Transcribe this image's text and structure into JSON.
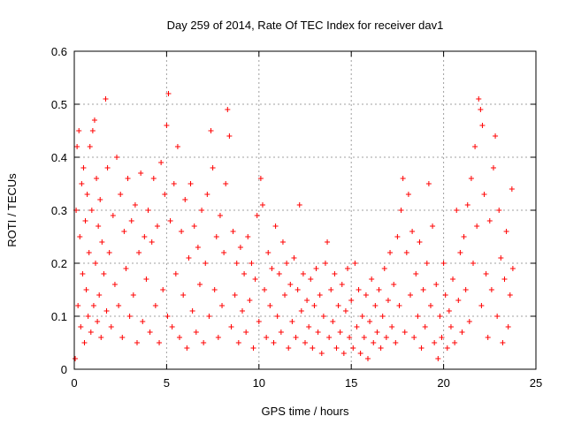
{
  "chart_data": {
    "type": "scatter",
    "title": "Day 259 of 2014, Rate Of TEC Index for receiver dav1",
    "xlabel": "GPS time / hours",
    "ylabel": "ROTI / TECUs",
    "xlim": [
      0,
      25
    ],
    "ylim": [
      0,
      0.6
    ],
    "x_ticks": [
      0,
      5,
      10,
      15,
      20,
      25
    ],
    "y_ticks": [
      0,
      0.1,
      0.2,
      0.3,
      0.4,
      0.5,
      0.6
    ],
    "x_tick_labels": [
      "0",
      "5",
      "10",
      "15",
      "20",
      "25"
    ],
    "y_tick_labels": [
      "0",
      "0.1",
      "0.2",
      "0.3",
      "0.4",
      "0.5",
      "0.6"
    ],
    "grid": true,
    "marker": "+",
    "color": "#ff0000",
    "series": [
      {
        "points": [
          [
            0.05,
            0.02
          ],
          [
            0.1,
            0.3
          ],
          [
            0.15,
            0.42
          ],
          [
            0.2,
            0.12
          ],
          [
            0.25,
            0.45
          ],
          [
            0.3,
            0.25
          ],
          [
            0.35,
            0.08
          ],
          [
            0.4,
            0.35
          ],
          [
            0.45,
            0.18
          ],
          [
            0.5,
            0.38
          ],
          [
            0.55,
            0.05
          ],
          [
            0.6,
            0.28
          ],
          [
            0.65,
            0.15
          ],
          [
            0.7,
            0.33
          ],
          [
            0.75,
            0.1
          ],
          [
            0.8,
            0.22
          ],
          [
            0.85,
            0.42
          ],
          [
            0.9,
            0.07
          ],
          [
            0.95,
            0.3
          ],
          [
            1.0,
            0.45
          ],
          [
            1.05,
            0.12
          ],
          [
            1.1,
            0.47
          ],
          [
            1.15,
            0.2
          ],
          [
            1.2,
            0.36
          ],
          [
            1.25,
            0.09
          ],
          [
            1.3,
            0.27
          ],
          [
            1.35,
            0.14
          ],
          [
            1.4,
            0.32
          ],
          [
            1.45,
            0.06
          ],
          [
            1.5,
            0.24
          ],
          [
            1.6,
            0.18
          ],
          [
            1.7,
            0.51
          ],
          [
            1.75,
            0.11
          ],
          [
            1.8,
            0.38
          ],
          [
            1.9,
            0.22
          ],
          [
            2.0,
            0.08
          ],
          [
            2.1,
            0.29
          ],
          [
            2.2,
            0.16
          ],
          [
            2.3,
            0.4
          ],
          [
            2.4,
            0.12
          ],
          [
            2.5,
            0.33
          ],
          [
            2.6,
            0.06
          ],
          [
            2.7,
            0.26
          ],
          [
            2.8,
            0.19
          ],
          [
            2.9,
            0.36
          ],
          [
            3.0,
            0.1
          ],
          [
            3.1,
            0.28
          ],
          [
            3.2,
            0.14
          ],
          [
            3.3,
            0.31
          ],
          [
            3.4,
            0.05
          ],
          [
            3.5,
            0.22
          ],
          [
            3.6,
            0.37
          ],
          [
            3.7,
            0.09
          ],
          [
            3.8,
            0.25
          ],
          [
            3.9,
            0.17
          ],
          [
            4.0,
            0.3
          ],
          [
            4.1,
            0.07
          ],
          [
            4.2,
            0.24
          ],
          [
            4.3,
            0.36
          ],
          [
            4.4,
            0.12
          ],
          [
            4.5,
            0.27
          ],
          [
            4.6,
            0.05
          ],
          [
            4.7,
            0.39
          ],
          [
            4.8,
            0.15
          ],
          [
            4.9,
            0.33
          ],
          [
            5.0,
            0.46
          ],
          [
            5.05,
            0.1
          ],
          [
            5.1,
            0.52
          ],
          [
            5.2,
            0.28
          ],
          [
            5.3,
            0.08
          ],
          [
            5.4,
            0.35
          ],
          [
            5.5,
            0.18
          ],
          [
            5.6,
            0.42
          ],
          [
            5.7,
            0.06
          ],
          [
            5.8,
            0.26
          ],
          [
            5.9,
            0.14
          ],
          [
            6.0,
            0.32
          ],
          [
            6.1,
            0.04
          ],
          [
            6.2,
            0.21
          ],
          [
            6.3,
            0.35
          ],
          [
            6.4,
            0.11
          ],
          [
            6.5,
            0.27
          ],
          [
            6.6,
            0.07
          ],
          [
            6.7,
            0.23
          ],
          [
            6.8,
            0.16
          ],
          [
            6.9,
            0.3
          ],
          [
            7.0,
            0.05
          ],
          [
            7.1,
            0.2
          ],
          [
            7.2,
            0.33
          ],
          [
            7.3,
            0.1
          ],
          [
            7.4,
            0.45
          ],
          [
            7.5,
            0.38
          ],
          [
            7.6,
            0.15
          ],
          [
            7.7,
            0.25
          ],
          [
            7.8,
            0.06
          ],
          [
            7.9,
            0.29
          ],
          [
            8.0,
            0.12
          ],
          [
            8.1,
            0.22
          ],
          [
            8.2,
            0.35
          ],
          [
            8.3,
            0.49
          ],
          [
            8.4,
            0.44
          ],
          [
            8.5,
            0.08
          ],
          [
            8.6,
            0.26
          ],
          [
            8.7,
            0.14
          ],
          [
            8.8,
            0.2
          ],
          [
            8.9,
            0.05
          ],
          [
            9.0,
            0.23
          ],
          [
            9.1,
            0.11
          ],
          [
            9.2,
            0.18
          ],
          [
            9.3,
            0.07
          ],
          [
            9.4,
            0.25
          ],
          [
            9.5,
            0.13
          ],
          [
            9.6,
            0.2
          ],
          [
            9.7,
            0.04
          ],
          [
            9.8,
            0.17
          ],
          [
            9.9,
            0.29
          ],
          [
            10.0,
            0.09
          ],
          [
            10.1,
            0.36
          ],
          [
            10.2,
            0.31
          ],
          [
            10.3,
            0.15
          ],
          [
            10.4,
            0.06
          ],
          [
            10.5,
            0.22
          ],
          [
            10.6,
            0.12
          ],
          [
            10.7,
            0.19
          ],
          [
            10.8,
            0.05
          ],
          [
            10.9,
            0.27
          ],
          [
            11.0,
            0.1
          ],
          [
            11.1,
            0.18
          ],
          [
            11.2,
            0.07
          ],
          [
            11.3,
            0.24
          ],
          [
            11.4,
            0.14
          ],
          [
            11.5,
            0.2
          ],
          [
            11.6,
            0.04
          ],
          [
            11.7,
            0.16
          ],
          [
            11.8,
            0.09
          ],
          [
            11.9,
            0.21
          ],
          [
            12.0,
            0.06
          ],
          [
            12.1,
            0.15
          ],
          [
            12.2,
            0.31
          ],
          [
            12.3,
            0.11
          ],
          [
            12.4,
            0.18
          ],
          [
            12.5,
            0.05
          ],
          [
            12.6,
            0.13
          ],
          [
            12.7,
            0.08
          ],
          [
            12.8,
            0.17
          ],
          [
            12.9,
            0.04
          ],
          [
            13.0,
            0.12
          ],
          [
            13.1,
            0.19
          ],
          [
            13.2,
            0.07
          ],
          [
            13.3,
            0.14
          ],
          [
            13.4,
            0.03
          ],
          [
            13.5,
            0.1
          ],
          [
            13.6,
            0.2
          ],
          [
            13.7,
            0.24
          ],
          [
            13.8,
            0.06
          ],
          [
            13.9,
            0.15
          ],
          [
            14.0,
            0.09
          ],
          [
            14.1,
            0.18
          ],
          [
            14.2,
            0.04
          ],
          [
            14.3,
            0.12
          ],
          [
            14.4,
            0.07
          ],
          [
            14.5,
            0.16
          ],
          [
            14.6,
            0.03
          ],
          [
            14.7,
            0.11
          ],
          [
            14.8,
            0.19
          ],
          [
            14.9,
            0.06
          ],
          [
            15.0,
            0.13
          ],
          [
            15.1,
            0.04
          ],
          [
            15.2,
            0.2
          ],
          [
            15.3,
            0.08
          ],
          [
            15.4,
            0.15
          ],
          [
            15.5,
            0.03
          ],
          [
            15.6,
            0.1
          ],
          [
            15.7,
            0.06
          ],
          [
            15.8,
            0.14
          ],
          [
            15.9,
            0.02
          ],
          [
            16.0,
            0.09
          ],
          [
            16.1,
            0.17
          ],
          [
            16.2,
            0.05
          ],
          [
            16.3,
            0.12
          ],
          [
            16.4,
            0.07
          ],
          [
            16.5,
            0.15
          ],
          [
            16.6,
            0.04
          ],
          [
            16.7,
            0.1
          ],
          [
            16.8,
            0.19
          ],
          [
            16.9,
            0.06
          ],
          [
            17.0,
            0.13
          ],
          [
            17.1,
            0.22
          ],
          [
            17.2,
            0.08
          ],
          [
            17.3,
            0.16
          ],
          [
            17.4,
            0.05
          ],
          [
            17.5,
            0.25
          ],
          [
            17.6,
            0.12
          ],
          [
            17.7,
            0.3
          ],
          [
            17.8,
            0.36
          ],
          [
            17.9,
            0.07
          ],
          [
            18.0,
            0.22
          ],
          [
            18.1,
            0.33
          ],
          [
            18.2,
            0.14
          ],
          [
            18.3,
            0.26
          ],
          [
            18.4,
            0.06
          ],
          [
            18.5,
            0.18
          ],
          [
            18.6,
            0.1
          ],
          [
            18.7,
            0.24
          ],
          [
            18.8,
            0.04
          ],
          [
            18.9,
            0.15
          ],
          [
            19.0,
            0.08
          ],
          [
            19.1,
            0.2
          ],
          [
            19.2,
            0.35
          ],
          [
            19.3,
            0.12
          ],
          [
            19.4,
            0.27
          ],
          [
            19.5,
            0.05
          ],
          [
            19.6,
            0.16
          ],
          [
            19.7,
            0.02
          ],
          [
            19.8,
            0.1
          ],
          [
            19.9,
            0.06
          ],
          [
            20.0,
            0.2
          ],
          [
            20.1,
            0.14
          ],
          [
            20.2,
            0.04
          ],
          [
            20.3,
            0.11
          ],
          [
            20.4,
            0.08
          ],
          [
            20.5,
            0.17
          ],
          [
            20.6,
            0.05
          ],
          [
            20.7,
            0.3
          ],
          [
            20.8,
            0.13
          ],
          [
            20.9,
            0.22
          ],
          [
            21.0,
            0.07
          ],
          [
            21.1,
            0.25
          ],
          [
            21.2,
            0.15
          ],
          [
            21.3,
            0.31
          ],
          [
            21.4,
            0.09
          ],
          [
            21.5,
            0.36
          ],
          [
            21.6,
            0.2
          ],
          [
            21.7,
            0.42
          ],
          [
            21.8,
            0.27
          ],
          [
            21.9,
            0.51
          ],
          [
            22.0,
            0.49
          ],
          [
            22.05,
            0.12
          ],
          [
            22.1,
            0.46
          ],
          [
            22.2,
            0.33
          ],
          [
            22.3,
            0.18
          ],
          [
            22.4,
            0.06
          ],
          [
            22.5,
            0.28
          ],
          [
            22.6,
            0.15
          ],
          [
            22.7,
            0.38
          ],
          [
            22.8,
            0.44
          ],
          [
            22.9,
            0.1
          ],
          [
            23.0,
            0.3
          ],
          [
            23.1,
            0.21
          ],
          [
            23.2,
            0.05
          ],
          [
            23.3,
            0.17
          ],
          [
            23.4,
            0.26
          ],
          [
            23.5,
            0.08
          ],
          [
            23.6,
            0.14
          ],
          [
            23.7,
            0.34
          ],
          [
            23.75,
            0.19
          ]
        ]
      }
    ]
  }
}
